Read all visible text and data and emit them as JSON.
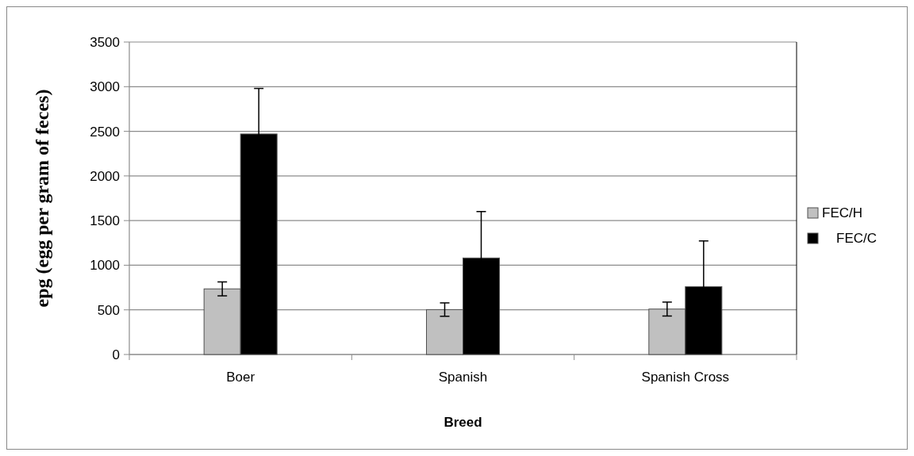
{
  "chart_data": {
    "type": "bar",
    "xlabel": "Breed",
    "ylabel": "epg (egg per gram of feces)",
    "categories": [
      "Boer",
      "Spanish",
      "Spanish Cross"
    ],
    "series": [
      {
        "name": "FEC/H",
        "color": "#c0c0c0",
        "values": [
          735,
          503,
          509
        ],
        "errors": [
          78,
          75,
          78
        ]
      },
      {
        "name": "FEC/C",
        "color": "#000000",
        "values": [
          2470,
          1081,
          760
        ],
        "errors": [
          510,
          520,
          512
        ]
      }
    ],
    "ylim": [
      0,
      3500
    ],
    "yticks": [
      0,
      500,
      1000,
      1500,
      2000,
      2500,
      3000,
      3500
    ],
    "grid": "y",
    "legend": "right"
  }
}
